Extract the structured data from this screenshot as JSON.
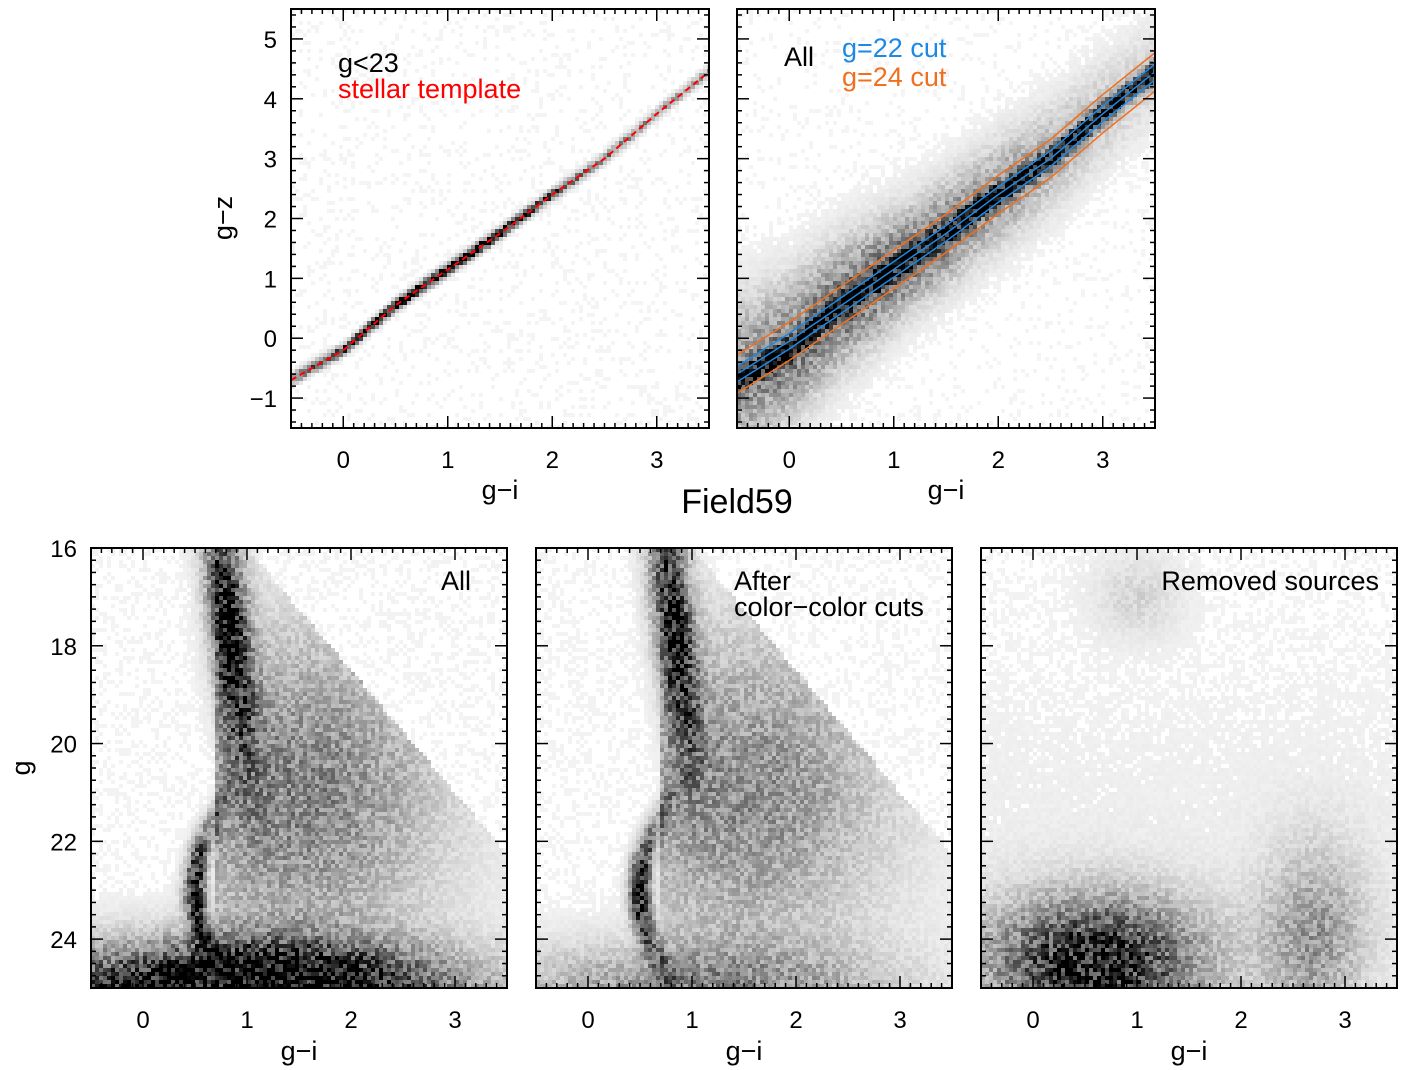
{
  "figure": {
    "title": "Field59"
  },
  "chart_data": [
    {
      "type": "heatmap",
      "panel": "color-color-bright",
      "xlabel": "g−i",
      "ylabel": "g−z",
      "xlim": [
        -0.5,
        3.5
      ],
      "ylim": [
        -1.5,
        5.5
      ],
      "xticks": [
        "0",
        "1",
        "2",
        "3"
      ],
      "xtick_values": [
        0,
        1,
        2,
        3
      ],
      "yticks": [
        "−1",
        "0",
        "1",
        "2",
        "3",
        "4",
        "5"
      ],
      "ytick_values": [
        -1,
        0,
        1,
        2,
        3,
        4,
        5
      ],
      "annotations": [
        {
          "text": "g<23",
          "color": "#000000"
        },
        {
          "text": "stellar template",
          "color": "#ff0000"
        }
      ],
      "series": [
        {
          "name": "stellar template",
          "style": "dashed",
          "color": "#ff0000",
          "x": [
            -0.5,
            0,
            0.5,
            1,
            1.5,
            2,
            2.5,
            3,
            3.5
          ],
          "y": [
            -0.7,
            -0.2,
            0.55,
            1.15,
            1.75,
            2.4,
            3.0,
            3.75,
            4.45
          ]
        }
      ]
    },
    {
      "type": "heatmap",
      "panel": "color-color-all",
      "xlabel": "g−i",
      "xlim": [
        -0.5,
        3.5
      ],
      "ylim": [
        -1.5,
        5.5
      ],
      "xticks": [
        "0",
        "1",
        "2",
        "3"
      ],
      "xtick_values": [
        0,
        1,
        2,
        3
      ],
      "annotations": [
        {
          "text": "All",
          "color": "#000000"
        },
        {
          "text": "g=22 cut",
          "color": "#1e88e5"
        },
        {
          "text": "g=24 cut",
          "color": "#f07020"
        }
      ],
      "series": [
        {
          "name": "g=22 cut",
          "color": "#1e88e5",
          "band_halfwidth": 0.13,
          "x": [
            -0.5,
            0,
            0.5,
            1,
            1.5,
            2,
            2.5,
            3,
            3.5
          ],
          "y": [
            -0.6,
            -0.05,
            0.55,
            1.15,
            1.75,
            2.4,
            3.0,
            3.75,
            4.45
          ]
        },
        {
          "name": "g=24 cut",
          "color": "#f07020",
          "band_halfwidth": 0.32,
          "x": [
            -0.5,
            0,
            0.5,
            1,
            1.5,
            2,
            2.5,
            3,
            3.5
          ],
          "y": [
            -0.6,
            -0.05,
            0.55,
            1.15,
            1.75,
            2.4,
            3.0,
            3.75,
            4.45
          ]
        }
      ]
    },
    {
      "type": "heatmap",
      "panel": "cmd-all",
      "xlabel": "g−i",
      "ylabel": "g",
      "xlim": [
        -0.5,
        3.5
      ],
      "ylim": [
        25,
        16
      ],
      "xticks": [
        "0",
        "1",
        "2",
        "3"
      ],
      "xtick_values": [
        0,
        1,
        2,
        3
      ],
      "yticks": [
        "16",
        "18",
        "20",
        "22",
        "24"
      ],
      "ytick_values": [
        16,
        18,
        20,
        22,
        24
      ],
      "annotations": [
        {
          "text": "All"
        }
      ]
    },
    {
      "type": "heatmap",
      "panel": "cmd-after-cuts",
      "xlabel": "g−i",
      "xlim": [
        -0.5,
        3.5
      ],
      "ylim": [
        25,
        16
      ],
      "xticks": [
        "0",
        "1",
        "2",
        "3"
      ],
      "xtick_values": [
        0,
        1,
        2,
        3
      ],
      "annotations": [
        {
          "text": "After"
        },
        {
          "text": "color−color cuts"
        }
      ]
    },
    {
      "type": "heatmap",
      "panel": "cmd-removed",
      "xlabel": "g−i",
      "xlim": [
        -0.5,
        3.5
      ],
      "ylim": [
        25,
        16
      ],
      "xticks": [
        "0",
        "1",
        "2",
        "3"
      ],
      "xtick_values": [
        0,
        1,
        2,
        3
      ],
      "annotations": [
        {
          "text": "Removed sources"
        }
      ]
    }
  ]
}
